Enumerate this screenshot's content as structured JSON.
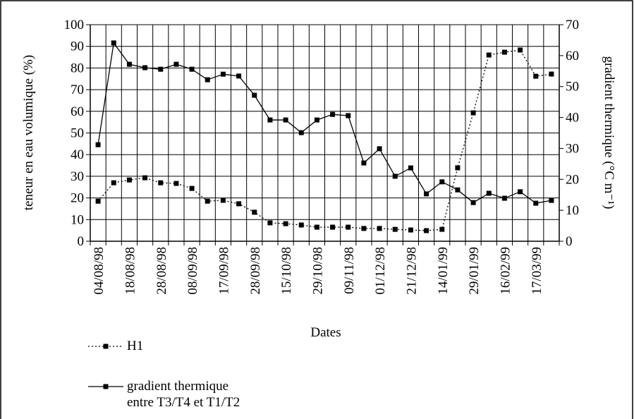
{
  "chart_data": {
    "type": "line",
    "xlabel": "Dates",
    "ylabel": "teneur en eau volumique (%)",
    "y2label": "gradient thermique (°C m⁻¹)",
    "categories": [
      "04/08/98",
      null,
      "18/08/98",
      null,
      "28/08/98",
      null,
      "08/09/98",
      null,
      "17/09/98",
      null,
      "28/09/98",
      null,
      "15/10/98",
      null,
      "29/10/98",
      null,
      "09/11/98",
      null,
      "01/12/98",
      null,
      "21/12/98",
      null,
      "14/01/99",
      null,
      "29/01/99",
      null,
      "16/02/99",
      null,
      "17/03/99",
      null
    ],
    "series": [
      {
        "name": "H1",
        "color": "#000000",
        "style": "dotted",
        "values": [
          18.5,
          27,
          28.3,
          29.3,
          27,
          26.7,
          24.4,
          18.5,
          18.9,
          17.3,
          13.4,
          8.5,
          8.1,
          7.5,
          6.5,
          6.5,
          6.5,
          5.9,
          5.9,
          5.5,
          5.2,
          4.9,
          5.5,
          33.9,
          59.3,
          86,
          87.3,
          88.3,
          76.2,
          77.2
        ]
      },
      {
        "name": "gradient thermique entre T3/T4 et T1/T2",
        "color": "#000000",
        "style": "solid",
        "axis": "y2",
        "values": [
          31.2,
          64.1,
          57.2,
          56.1,
          55.6,
          57.2,
          55.6,
          52.2,
          54,
          53.4,
          47.2,
          39.2,
          39.2,
          35.1,
          39.2,
          41,
          40.6,
          25.3,
          29.9,
          21,
          23.7,
          15.3,
          19.2,
          16.6,
          12.5,
          15.5,
          13.9,
          16,
          12.3,
          13.2
        ]
      }
    ],
    "ylim": [
      0,
      100
    ],
    "yticks": [
      0,
      10,
      20,
      30,
      40,
      50,
      60,
      70,
      80,
      90,
      100
    ],
    "y2lim": [
      0,
      70
    ],
    "y2ticks": [
      0,
      10,
      20,
      30,
      40,
      50,
      60,
      70
    ],
    "grid": true
  }
}
